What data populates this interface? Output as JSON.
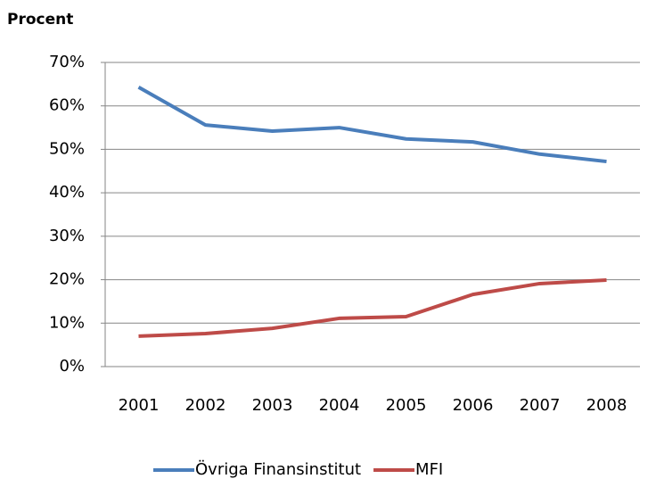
{
  "chart_data": {
    "type": "line",
    "y_label": "Procent",
    "categories": [
      "2001",
      "2002",
      "2003",
      "2004",
      "2005",
      "2006",
      "2007",
      "2008"
    ],
    "series": [
      {
        "name": "Övriga Finansinstitut",
        "color": "#4a7ebb",
        "values": [
          64.3,
          55.6,
          54.2,
          55.0,
          52.4,
          51.7,
          48.9,
          47.2
        ]
      },
      {
        "name": "MFI",
        "color": "#be4b48",
        "values": [
          7.0,
          7.6,
          8.8,
          11.1,
          11.5,
          16.6,
          19.1,
          19.9
        ]
      }
    ],
    "ylim": [
      0,
      70
    ],
    "yticks": [
      {
        "value": 0,
        "label": "0%"
      },
      {
        "value": 10,
        "label": "10%"
      },
      {
        "value": 20,
        "label": "20%"
      },
      {
        "value": 30,
        "label": "30%"
      },
      {
        "value": 40,
        "label": "40%"
      },
      {
        "value": 50,
        "label": "50%"
      },
      {
        "value": 60,
        "label": "60%"
      },
      {
        "value": 70,
        "label": "70%"
      }
    ],
    "grid": true,
    "legend": "bottom"
  }
}
